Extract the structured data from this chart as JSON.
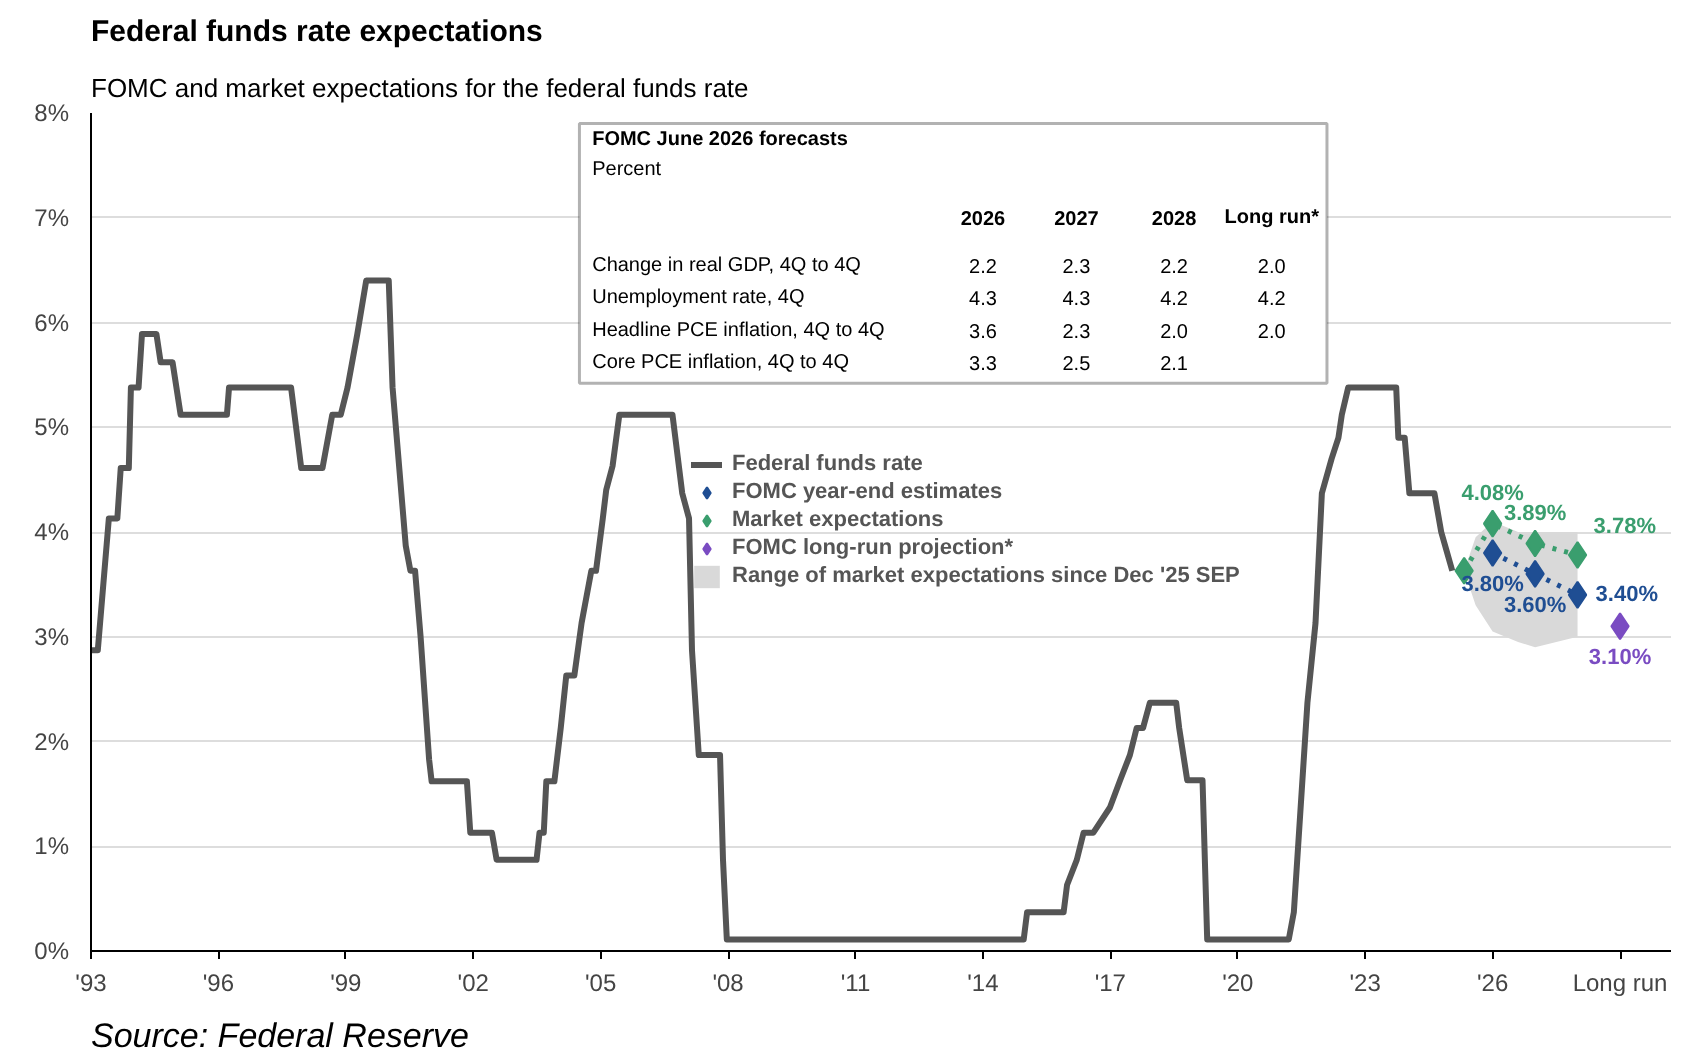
{
  "chart_data": {
    "type": "line",
    "title": "Federal funds rate expectations",
    "subtitle": "FOMC and market expectations for the federal funds rate",
    "annotations": [
      "Source: Federal Reserve",
      "FOMC June 2026 forecasts",
      "Percent",
      "2026",
      "2027",
      "2028",
      "Long run*",
      "Change in real GDP, 4Q to 4Q",
      "2.2",
      "2.3",
      "2.2",
      "2.0",
      "Unemployment rate, 4Q",
      "4.3",
      "4.3",
      "4.2",
      "4.2",
      "Headline PCE inflation, 4Q to 4Q",
      "3.6",
      "2.3",
      "2.0",
      "2.0",
      "Core PCE inflation, 4Q to 4Q",
      "3.3",
      "2.5",
      "2.1"
    ],
    "xlim": [
      1993,
      2030.2
    ],
    "ylim": [
      0,
      8
    ],
    "xticks": [
      {
        "value": 1993,
        "label": "'93"
      },
      {
        "value": 1996,
        "label": "'96"
      },
      {
        "value": 1999,
        "label": "'99"
      },
      {
        "value": 2002,
        "label": "'02"
      },
      {
        "value": 2005,
        "label": "'05"
      },
      {
        "value": 2008,
        "label": "'08"
      },
      {
        "value": 2011,
        "label": "'11"
      },
      {
        "value": 2014,
        "label": "'14"
      },
      {
        "value": 2017,
        "label": "'17"
      },
      {
        "value": 2020,
        "label": "'20"
      },
      {
        "value": 2023,
        "label": "'23"
      },
      {
        "value": 2026,
        "label": "'26"
      },
      {
        "value": 2029,
        "label": "Long run"
      }
    ],
    "yticks": [
      {
        "value": 0,
        "label": "0%"
      },
      {
        "value": 1,
        "label": "1%"
      },
      {
        "value": 2,
        "label": "2%"
      },
      {
        "value": 3,
        "label": "3%"
      },
      {
        "value": 4,
        "label": "4%"
      },
      {
        "value": 5,
        "label": "5%"
      },
      {
        "value": 6,
        "label": "6%"
      },
      {
        "value": 7,
        "label": "7%"
      },
      {
        "value": 8,
        "label": "8%"
      }
    ],
    "grid": "y",
    "legend": "center",
    "series": [
      {
        "name": "Federal funds rate",
        "color": "#555555",
        "x": [
          1993.0,
          1993.16,
          1993.42,
          1993.62,
          1993.7,
          1993.89,
          1993.94,
          1994.12,
          1994.2,
          1994.54,
          1994.64,
          1994.92,
          1995.11,
          1996.2,
          1996.25,
          1997.71,
          1997.95,
          1998.45,
          1998.68,
          1998.88,
          1999.04,
          1999.27,
          1999.48,
          2000.01,
          2000.1,
          2000.41,
          2000.52,
          2000.63,
          2000.76,
          2000.96,
          2001.02,
          2001.85,
          2001.93,
          2002.44,
          2002.55,
          2003.49,
          2003.56,
          2003.66,
          2003.72,
          2003.91,
          2004.06,
          2004.19,
          2004.38,
          2004.55,
          2004.78,
          2004.89,
          2005.05,
          2005.13,
          2005.28,
          2005.44,
          2006.69,
          2006.92,
          2007.08,
          2007.15,
          2007.31,
          2007.81,
          2007.88,
          2007.97,
          2014.96,
          2015.04,
          2015.9,
          2015.98,
          2016.21,
          2016.37,
          2016.6,
          2016.99,
          2017.23,
          2017.46,
          2017.62,
          2017.77,
          2017.93,
          2018.55,
          2018.62,
          2018.81,
          2019.17,
          2019.28,
          2021.2,
          2021.32,
          2021.64,
          2021.83,
          2021.98,
          2022.21,
          2022.37,
          2022.45,
          2022.6,
          2023.73,
          2023.78,
          2023.93,
          2024.04,
          2024.63,
          2024.79,
          2024.91,
          2025.05
        ],
        "values": [
          2.87,
          2.87,
          4.13,
          4.13,
          4.61,
          4.61,
          5.38,
          5.38,
          5.89,
          5.89,
          5.62,
          5.62,
          5.12,
          5.12,
          5.38,
          5.38,
          4.61,
          4.61,
          5.12,
          5.12,
          5.38,
          5.89,
          6.4,
          6.4,
          5.38,
          3.87,
          3.63,
          3.63,
          3.0,
          1.83,
          1.62,
          1.62,
          1.13,
          1.13,
          0.87,
          0.87,
          1.13,
          1.13,
          1.62,
          1.62,
          2.13,
          2.63,
          2.63,
          3.13,
          3.63,
          3.63,
          4.13,
          4.4,
          4.63,
          5.12,
          5.12,
          4.37,
          4.13,
          2.87,
          1.87,
          1.87,
          0.87,
          0.11,
          0.11,
          0.37,
          0.37,
          0.63,
          0.87,
          1.13,
          1.13,
          1.37,
          1.63,
          1.87,
          2.13,
          2.13,
          2.37,
          2.37,
          2.13,
          1.63,
          1.63,
          0.11,
          0.11,
          0.37,
          2.37,
          3.13,
          4.37,
          4.7,
          4.9,
          5.12,
          5.38,
          5.38,
          4.9,
          4.9,
          4.37,
          4.37,
          4.0,
          3.83,
          3.63
        ]
      },
      {
        "name": "Range of market expectations since Dec '25 SEP",
        "type": "line",
        "color": "#d9d9d9",
        "x": [
          2025.33,
          2025.6,
          2026,
          2026.6,
          2027,
          2028
        ],
        "values": [
          null,
          null,
          null,
          null,
          null,
          null
        ],
        "upper": [
          3.63,
          3.95,
          4.1,
          4.0,
          4.0,
          4.0
        ],
        "lower": [
          3.63,
          3.3,
          3.05,
          2.95,
          2.9,
          3.0
        ]
      },
      {
        "name": "FOMC year-end estimates",
        "type": "line",
        "line_style": "dotted",
        "marker": "diamond",
        "color": "#1f4e93",
        "x": [
          2026,
          2027,
          2028
        ],
        "values": [
          3.8,
          3.6,
          3.4
        ],
        "value_labels": [
          "3.80%",
          "3.60%",
          "3.40%"
        ]
      },
      {
        "name": "Market expectations",
        "type": "line",
        "line_style": "dotted",
        "marker": "diamond",
        "color": "#3a9e6e",
        "x": [
          2025.33,
          2026,
          2027,
          2028
        ],
        "values": [
          3.63,
          4.08,
          3.89,
          3.78
        ],
        "value_labels": [
          null,
          "4.08%",
          "3.89%",
          "3.78%"
        ]
      },
      {
        "name": "FOMC long-run projection*",
        "type": "scatter",
        "marker": "diamond",
        "color": "#7a4cc2",
        "x": [
          2029
        ],
        "values": [
          3.1
        ],
        "value_labels": [
          "3.10%"
        ]
      }
    ]
  }
}
